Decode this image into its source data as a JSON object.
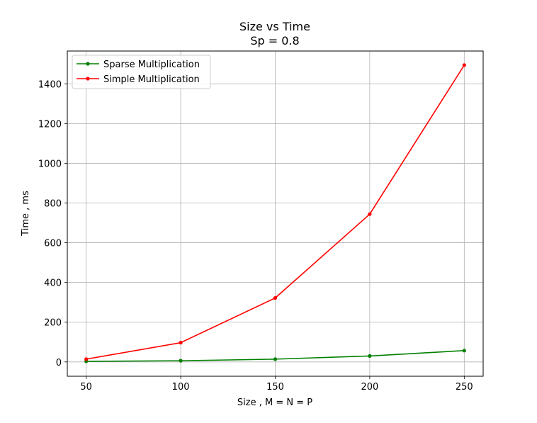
{
  "chart_data": {
    "type": "line",
    "title": "Size vs Time",
    "subtitle": "Sp = 0.8",
    "xlabel": "Size , M = N = P",
    "ylabel": "Time , ms",
    "x": [
      50,
      100,
      150,
      200,
      250
    ],
    "x_ticks": [
      50,
      100,
      150,
      200,
      250
    ],
    "y_ticks": [
      0,
      200,
      400,
      600,
      800,
      1000,
      1200,
      1400
    ],
    "xlim": [
      40,
      260
    ],
    "ylim": [
      -72,
      1565
    ],
    "grid": true,
    "legend_position": "top-left",
    "series": [
      {
        "name": "Sparse Multiplication",
        "color": "#008000",
        "values": [
          3,
          6,
          14,
          30,
          57
        ]
      },
      {
        "name": "Simple Multiplication",
        "color": "#ff0000",
        "values": [
          14,
          97,
          322,
          744,
          1494
        ]
      }
    ]
  }
}
